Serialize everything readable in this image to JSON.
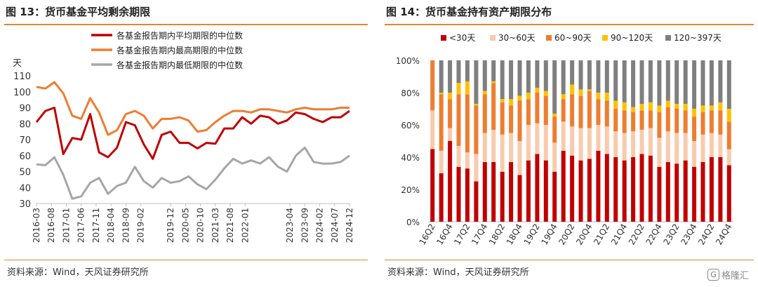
{
  "left": {
    "title": "图 13：货币基金平均剩余期限",
    "source": "资料来源：Wind，天风证券研究所",
    "chart_data": {
      "type": "line",
      "ylabel": "天",
      "ylim": [
        30,
        110
      ],
      "yticks": [
        30,
        40,
        50,
        60,
        70,
        80,
        90,
        100,
        110
      ],
      "grid": false,
      "legend": "top",
      "x": [
        "2016-03",
        "2016-06",
        "2016-08",
        "2016-11",
        "2017-01",
        "2017-04",
        "2017-06",
        "2017-09",
        "2017-11",
        "2018-02",
        "2018-04",
        "2018-07",
        "2018-09",
        "2018-12",
        "2019-02",
        "2019-04",
        "2019-06",
        "2019-09",
        "2019-12",
        "2020-02",
        "2020-05",
        "2020-07",
        "2020-10",
        "2020-12",
        "2021-03",
        "2021-05",
        "2021-08",
        "2021-10",
        "2022-01",
        "2022-03",
        "2022-05",
        "2022-08",
        "2022-10",
        "2023-01",
        "2023-04",
        "2023-06",
        "2023-09",
        "2023-11",
        "2024-02",
        "2024-04",
        "2024-07",
        "2024-09",
        "2024-12"
      ],
      "tick_labels": [
        "2016-03",
        "2016-08",
        "2017-01",
        "2017-06",
        "2017-11",
        "2018-04",
        "2018-09",
        "2019-02",
        "2019-07",
        "2019-12",
        "2020-05",
        "2020-10",
        "2021-03",
        "2021-08",
        "2022-01",
        "2022-06",
        "2022-11",
        "2023-04",
        "2023-09",
        "2024-02",
        "2024-07",
        "2024-12"
      ],
      "series": [
        {
          "name": "各基金报告期内平均期限的中位数",
          "color": "#c00000",
          "values": [
            81,
            88,
            90,
            61,
            71,
            70,
            86,
            62,
            59,
            65,
            81,
            79,
            67,
            58,
            73,
            75,
            68,
            68,
            64.5,
            68,
            67.5,
            77,
            77,
            84,
            80,
            85,
            84,
            80,
            82,
            87,
            86,
            83,
            81,
            84,
            84,
            88,
            null,
            null,
            null,
            null,
            null,
            null,
            null
          ]
        },
        {
          "name": "各基金报告期内最高期限的中位数",
          "color": "#ed7d31",
          "values": [
            103,
            102,
            106,
            99,
            85,
            83,
            96,
            87,
            73,
            76,
            86,
            88,
            85,
            77,
            83,
            83,
            84,
            82,
            75,
            76,
            81,
            85,
            88,
            88,
            87,
            89,
            89,
            88,
            87,
            89,
            90,
            89,
            89,
            89,
            90,
            90,
            null,
            null,
            null,
            null,
            null,
            null,
            null
          ]
        },
        {
          "name": "各基金报告期内最低期限的中位数",
          "color": "#a6a6a6",
          "values": [
            54.5,
            54,
            59,
            48,
            33,
            34.5,
            43,
            46,
            36,
            41,
            43,
            53,
            44,
            40,
            46,
            43,
            44,
            47,
            42,
            39,
            45,
            52,
            58,
            55,
            57,
            55,
            59,
            53,
            50,
            60,
            65,
            56,
            55,
            55,
            56,
            60,
            null,
            null,
            null,
            null,
            null,
            null,
            null
          ]
        }
      ]
    }
  },
  "right": {
    "title": "图 14：货币基金持有资产期限分布",
    "source": "资料来源：Wind，天风证券研究所",
    "watermark": "格隆汇",
    "chart_data": {
      "type": "bar",
      "stacked": true,
      "ylim": [
        0,
        100
      ],
      "yticks": [
        "0%",
        "20%",
        "40%",
        "60%",
        "80%",
        "100%"
      ],
      "legend": "top",
      "categories": [
        "16Q2",
        "16Q3",
        "16Q4",
        "17Q1",
        "17Q2",
        "17Q3",
        "17Q4",
        "18Q1",
        "18Q2",
        "18Q3",
        "18Q4",
        "19Q1",
        "19Q2",
        "19Q3",
        "19Q4",
        "20Q1",
        "20Q2",
        "20Q3",
        "20Q4",
        "21Q1",
        "21Q2",
        "21Q3",
        "21Q4",
        "22Q1",
        "22Q2",
        "22Q3",
        "22Q4",
        "23Q1",
        "23Q2",
        "23Q3",
        "23Q4",
        "24Q1",
        "24Q2",
        "24Q3",
        "24Q4"
      ],
      "tick_labels": [
        "16Q2",
        "16Q4",
        "17Q2",
        "17Q4",
        "18Q2",
        "18Q4",
        "19Q2",
        "19Q4",
        "20Q2",
        "20Q4",
        "21Q2",
        "21Q4",
        "22Q2",
        "22Q4",
        "23Q2",
        "23Q4",
        "24Q2",
        "24Q4"
      ],
      "series": [
        {
          "name": "<30天",
          "color": "#c00000",
          "values": [
            45,
            30,
            50,
            34,
            33,
            25,
            37,
            37,
            31,
            37,
            29,
            38,
            42,
            38,
            31,
            44,
            41,
            38,
            39,
            44,
            42,
            40,
            38,
            40,
            42,
            41,
            34,
            37,
            36,
            38,
            34,
            37,
            40,
            40,
            35
          ]
        },
        {
          "name": "30~60天",
          "color": "#f8cbad",
          "values": [
            24,
            14,
            8,
            13,
            10,
            17,
            18,
            20,
            23,
            18,
            21,
            22,
            19,
            22,
            18,
            18,
            18,
            20,
            19,
            16,
            17,
            16,
            17,
            16,
            15,
            17,
            18,
            19,
            19,
            17,
            16,
            17,
            15,
            14,
            10
          ]
        },
        {
          "name": "60~90天",
          "color": "#ed7d31",
          "values": [
            31,
            35,
            18,
            32,
            36,
            30,
            24,
            29,
            20,
            17,
            25,
            16,
            19,
            18,
            16,
            14,
            20,
            20,
            23,
            16,
            16,
            14,
            14,
            12,
            12,
            11,
            16,
            15,
            15,
            14,
            15,
            14,
            14,
            15,
            17
          ]
        },
        {
          "name": "90~120天",
          "color": "#ffc000",
          "values": [
            0,
            1,
            4,
            7,
            8,
            1,
            2,
            1,
            2,
            4,
            3,
            4,
            3,
            3,
            2,
            3,
            6,
            4,
            1,
            4,
            5,
            5,
            5,
            3,
            4,
            5,
            4,
            4,
            3,
            4,
            5,
            4,
            3,
            5,
            8
          ]
        },
        {
          "name": "120~397天",
          "color": "#7f7f7f",
          "values": [
            0,
            20,
            20,
            14,
            13,
            27,
            19,
            13,
            24,
            24,
            22,
            20,
            17,
            19,
            33,
            21,
            15,
            18,
            18,
            20,
            20,
            25,
            26,
            29,
            27,
            26,
            28,
            25,
            27,
            27,
            30,
            28,
            28,
            26,
            30
          ]
        }
      ]
    }
  }
}
